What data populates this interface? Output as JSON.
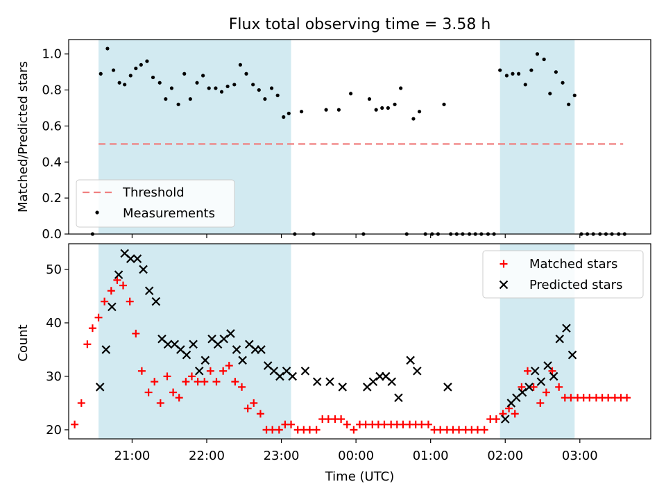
{
  "title": "Flux total observing time = 3.58 h",
  "x_axis": {
    "label": "Time (UTC)",
    "min_hours": 20.15,
    "max_hours": 27.95,
    "ticks": [
      {
        "hours": 21,
        "label": "21:00"
      },
      {
        "hours": 22,
        "label": "22:00"
      },
      {
        "hours": 23,
        "label": "23:00"
      },
      {
        "hours": 24,
        "label": "00:00"
      },
      {
        "hours": 25,
        "label": "01:00"
      },
      {
        "hours": 26,
        "label": "02:00"
      },
      {
        "hours": 27,
        "label": "03:00"
      }
    ]
  },
  "shaded_intervals_hours": [
    [
      20.55,
      23.13
    ],
    [
      25.93,
      26.93
    ]
  ],
  "colors": {
    "shade": "#add8e6",
    "threshold": "#f08080",
    "measurement": "#000000",
    "matched": "#ff0000",
    "predicted": "#000000"
  },
  "chart_data": [
    {
      "type": "scatter",
      "ylabel": "Matched/Predicted stars",
      "ylim": [
        0,
        1.08
      ],
      "yticks": [
        "0.0",
        "0.2",
        "0.4",
        "0.6",
        "0.8",
        "1.0"
      ],
      "legend": {
        "placement": "lower-left",
        "entries": [
          {
            "label": "Threshold"
          },
          {
            "label": "Measurements"
          }
        ]
      },
      "threshold": {
        "y": 0.5,
        "x_start": 20.55,
        "x_end": 27.58
      },
      "series": [
        {
          "name": "Measurements",
          "x": [
            20.47,
            20.58,
            20.67,
            20.75,
            20.83,
            20.9,
            20.98,
            21.05,
            21.12,
            21.2,
            21.28,
            21.37,
            21.45,
            21.53,
            21.62,
            21.7,
            21.78,
            21.87,
            21.95,
            22.03,
            22.12,
            22.2,
            22.28,
            22.37,
            22.45,
            22.53,
            22.62,
            22.7,
            22.78,
            22.87,
            22.95,
            23.03,
            23.1,
            23.18,
            23.27,
            23.43,
            23.6,
            23.77,
            23.93,
            24.1,
            24.18,
            24.27,
            24.35,
            24.43,
            24.52,
            24.6,
            24.68,
            24.77,
            24.85,
            24.93,
            25.02,
            25.1,
            25.18,
            25.27,
            25.35,
            25.43,
            25.52,
            25.6,
            25.68,
            25.77,
            25.85,
            25.93,
            26.02,
            26.1,
            26.18,
            26.27,
            26.35,
            26.43,
            26.52,
            26.6,
            26.68,
            26.77,
            26.85,
            26.93,
            27.02,
            27.1,
            27.18,
            27.27,
            27.35,
            27.43,
            27.52,
            27.6
          ],
          "y": [
            0.0,
            0.89,
            1.03,
            0.91,
            0.84,
            0.83,
            0.88,
            0.92,
            0.94,
            0.96,
            0.87,
            0.84,
            0.75,
            0.81,
            0.72,
            0.89,
            0.75,
            0.84,
            0.88,
            0.81,
            0.81,
            0.79,
            0.82,
            0.83,
            0.94,
            0.89,
            0.83,
            0.8,
            0.75,
            0.81,
            0.77,
            0.65,
            0.67,
            0.0,
            0.68,
            0.0,
            0.69,
            0.69,
            0.78,
            0.0,
            0.75,
            0.69,
            0.7,
            0.7,
            0.72,
            0.81,
            0.0,
            0.64,
            0.68,
            0.0,
            0.0,
            0.0,
            0.72,
            0.0,
            0.0,
            0.0,
            0.0,
            0.0,
            0.0,
            0.0,
            0.0,
            0.91,
            0.88,
            0.89,
            0.89,
            0.83,
            0.91,
            1.0,
            0.97,
            0.78,
            0.9,
            0.84,
            0.72,
            0.77,
            0.0,
            0.0,
            0.0,
            0.0,
            0.0,
            0.0,
            0.0,
            0.0
          ]
        }
      ]
    },
    {
      "type": "scatter",
      "ylabel": "Count",
      "ylim": [
        18.3,
        54.8
      ],
      "yticks": [
        "20",
        "30",
        "40",
        "50"
      ],
      "legend": {
        "placement": "top-right",
        "entries": [
          {
            "label": "Matched stars"
          },
          {
            "label": "Predicted stars"
          }
        ]
      },
      "series": [
        {
          "name": "Matched stars",
          "x": [
            20.23,
            20.32,
            20.4,
            20.47,
            20.55,
            20.63,
            20.72,
            20.8,
            20.88,
            20.97,
            21.05,
            21.13,
            21.22,
            21.3,
            21.38,
            21.47,
            21.55,
            21.63,
            21.72,
            21.8,
            21.88,
            21.97,
            22.05,
            22.13,
            22.22,
            22.3,
            22.38,
            22.47,
            22.55,
            22.63,
            22.72,
            22.8,
            22.88,
            22.97,
            23.05,
            23.13,
            23.22,
            23.3,
            23.38,
            23.47,
            23.55,
            23.63,
            23.72,
            23.8,
            23.88,
            23.97,
            24.05,
            24.13,
            24.22,
            24.3,
            24.38,
            24.47,
            24.55,
            24.63,
            24.72,
            24.8,
            24.88,
            24.97,
            25.05,
            25.13,
            25.22,
            25.3,
            25.38,
            25.47,
            25.55,
            25.63,
            25.72,
            25.8,
            25.88,
            25.97,
            26.05,
            26.13,
            26.22,
            26.3,
            26.38,
            26.47,
            26.55,
            26.63,
            26.72,
            26.8,
            26.88,
            26.97,
            27.05,
            27.13,
            27.22,
            27.3,
            27.38,
            27.47,
            27.55,
            27.63
          ],
          "y": [
            21,
            25,
            36,
            39,
            41,
            44,
            46,
            48,
            47,
            44,
            38,
            31,
            27,
            29,
            25,
            30,
            27,
            26,
            29,
            30,
            29,
            29,
            31,
            29,
            31,
            32,
            29,
            28,
            24,
            25,
            23,
            20,
            20,
            20,
            21,
            21,
            20,
            20,
            20,
            20,
            22,
            22,
            22,
            22,
            21,
            20,
            21,
            21,
            21,
            21,
            21,
            21,
            21,
            21,
            21,
            21,
            21,
            21,
            20,
            20,
            20,
            20,
            20,
            20,
            20,
            20,
            20,
            22,
            22,
            23,
            24,
            23,
            28,
            31,
            28,
            25,
            27,
            31,
            28,
            26,
            26,
            26,
            26,
            26,
            26,
            26,
            26,
            26,
            26,
            26
          ]
        },
        {
          "name": "Predicted stars",
          "x": [
            20.57,
            20.65,
            20.73,
            20.82,
            20.9,
            20.98,
            21.07,
            21.15,
            21.23,
            21.32,
            21.4,
            21.48,
            21.57,
            21.65,
            21.73,
            21.82,
            21.9,
            21.98,
            22.07,
            22.15,
            22.23,
            22.32,
            22.4,
            22.48,
            22.57,
            22.65,
            22.73,
            22.82,
            22.9,
            22.98,
            23.07,
            23.15,
            23.32,
            23.48,
            23.65,
            23.82,
            24.15,
            24.23,
            24.32,
            24.4,
            24.48,
            24.57,
            24.73,
            24.82,
            25.23,
            26.0,
            26.08,
            26.15,
            26.23,
            26.32,
            26.4,
            26.48,
            26.57,
            26.65,
            26.73,
            26.82,
            26.9
          ],
          "y": [
            28,
            35,
            43,
            49,
            53,
            52,
            52,
            50,
            46,
            44,
            37,
            36,
            36,
            35,
            34,
            36,
            31,
            33,
            37,
            36,
            37,
            38,
            35,
            33,
            36,
            35,
            35,
            32,
            31,
            30,
            31,
            30,
            31,
            29,
            29,
            28,
            28,
            29,
            30,
            30,
            29,
            26,
            33,
            31,
            28,
            22,
            25,
            26,
            27,
            28,
            31,
            29,
            32,
            30,
            37,
            39,
            34
          ]
        }
      ]
    }
  ]
}
